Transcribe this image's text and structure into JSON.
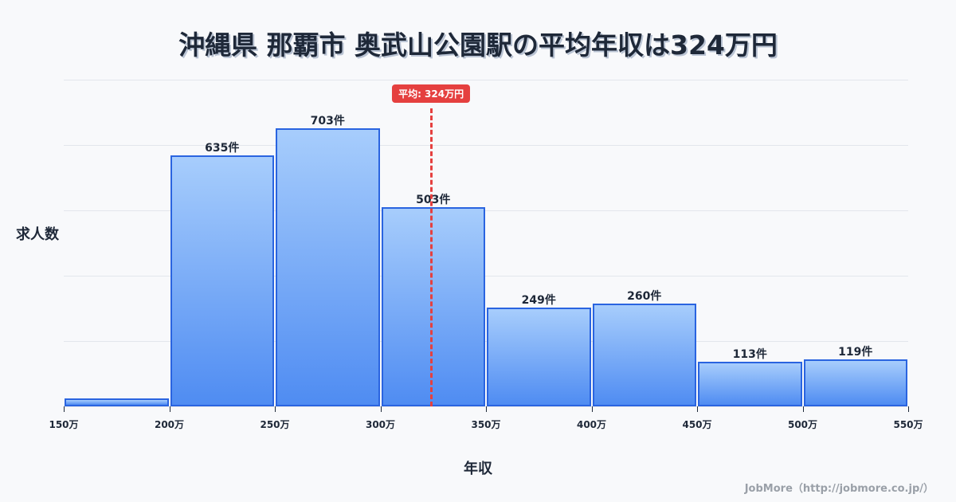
{
  "title": "沖縄県 那覇市 奥武山公園駅の平均年収は324万円",
  "ylabel": "求人数",
  "xlabel": "年収",
  "credit": "JobMore（http://jobmore.co.jp/）",
  "average_badge": "平均: 324万円",
  "chart_data": {
    "type": "bar",
    "title": "沖縄県 那覇市 奥武山公園駅の平均年収は324万円",
    "xlabel": "年収",
    "ylabel": "求人数",
    "categories": [
      "150-200万",
      "200-250万",
      "250-300万",
      "300-350万",
      "350-400万",
      "400-450万",
      "450-500万",
      "500-550万"
    ],
    "bin_edges": [
      150,
      200,
      250,
      300,
      350,
      400,
      450,
      500,
      550
    ],
    "values": [
      20,
      635,
      703,
      503,
      249,
      260,
      113,
      119
    ],
    "value_labels": [
      "",
      "635件",
      "703件",
      "503件",
      "249件",
      "260件",
      "113件",
      "119件"
    ],
    "tick_labels": [
      "150万",
      "200万",
      "250万",
      "300万",
      "350万",
      "400万",
      "450万",
      "500万",
      "550万"
    ],
    "average": 324,
    "average_label": "平均: 324万円",
    "ylim": [
      0,
      826
    ],
    "grid": true,
    "colors": {
      "bar_top": "#a7cdfc",
      "bar_bottom": "#4f8cf2",
      "bar_border": "#2a64e0",
      "average_line": "#e5403f"
    }
  }
}
